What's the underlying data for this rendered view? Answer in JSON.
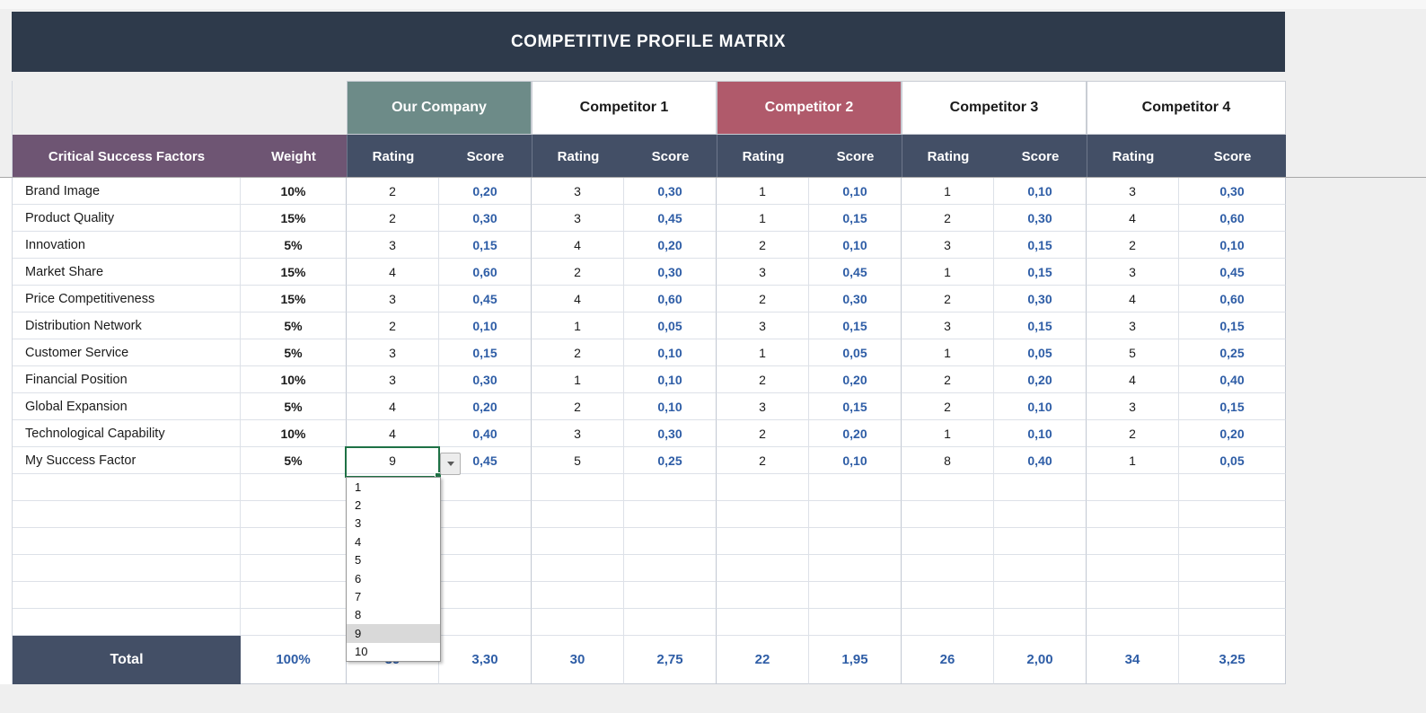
{
  "title": "COMPETITIVE PROFILE MATRIX",
  "header": {
    "factors": "Critical Success Factors",
    "weight": "Weight",
    "rating": "Rating",
    "score": "Score"
  },
  "companies": [
    {
      "name": "Our Company",
      "bg": "#6d8b88",
      "fg": "#ffffff"
    },
    {
      "name": "Competitor 1",
      "bg": "#ffffff",
      "fg": "#1a1a1a"
    },
    {
      "name": "Competitor 2",
      "bg": "#b05a6b",
      "fg": "#ffffff"
    },
    {
      "name": "Competitor 3",
      "bg": "#ffffff",
      "fg": "#1a1a1a"
    },
    {
      "name": "Competitor 4",
      "bg": "#ffffff",
      "fg": "#1a1a1a"
    }
  ],
  "rows": [
    {
      "factor": "Brand Image",
      "weight": "10%",
      "values": [
        "2",
        "0,20",
        "3",
        "0,30",
        "1",
        "0,10",
        "1",
        "0,10",
        "3",
        "0,30"
      ]
    },
    {
      "factor": "Product Quality",
      "weight": "15%",
      "values": [
        "2",
        "0,30",
        "3",
        "0,45",
        "1",
        "0,15",
        "2",
        "0,30",
        "4",
        "0,60"
      ]
    },
    {
      "factor": "Innovation",
      "weight": "5%",
      "values": [
        "3",
        "0,15",
        "4",
        "0,20",
        "2",
        "0,10",
        "3",
        "0,15",
        "2",
        "0,10"
      ]
    },
    {
      "factor": "Market Share",
      "weight": "15%",
      "values": [
        "4",
        "0,60",
        "2",
        "0,30",
        "3",
        "0,45",
        "1",
        "0,15",
        "3",
        "0,45"
      ]
    },
    {
      "factor": "Price Competitiveness",
      "weight": "15%",
      "values": [
        "3",
        "0,45",
        "4",
        "0,60",
        "2",
        "0,30",
        "2",
        "0,30",
        "4",
        "0,60"
      ]
    },
    {
      "factor": "Distribution Network",
      "weight": "5%",
      "values": [
        "2",
        "0,10",
        "1",
        "0,05",
        "3",
        "0,15",
        "3",
        "0,15",
        "3",
        "0,15"
      ]
    },
    {
      "factor": "Customer Service",
      "weight": "5%",
      "values": [
        "3",
        "0,15",
        "2",
        "0,10",
        "1",
        "0,05",
        "1",
        "0,05",
        "5",
        "0,25"
      ]
    },
    {
      "factor": "Financial Position",
      "weight": "10%",
      "values": [
        "3",
        "0,30",
        "1",
        "0,10",
        "2",
        "0,20",
        "2",
        "0,20",
        "4",
        "0,40"
      ]
    },
    {
      "factor": "Global Expansion",
      "weight": "5%",
      "values": [
        "4",
        "0,20",
        "2",
        "0,10",
        "3",
        "0,15",
        "2",
        "0,10",
        "3",
        "0,15"
      ]
    },
    {
      "factor": "Technological Capability",
      "weight": "10%",
      "values": [
        "4",
        "0,40",
        "3",
        "0,30",
        "2",
        "0,20",
        "1",
        "0,10",
        "2",
        "0,20"
      ]
    },
    {
      "factor": "My Success Factor",
      "weight": "5%",
      "values": [
        "9",
        "0,45",
        "5",
        "0,25",
        "2",
        "0,10",
        "8",
        "0,40",
        "1",
        "0,05"
      ]
    }
  ],
  "empty_row_count": 6,
  "selected": {
    "row_index": 10,
    "column": "Our Company Rating",
    "value": "9",
    "dropdown_options": [
      "1",
      "2",
      "3",
      "4",
      "5",
      "6",
      "7",
      "8",
      "9",
      "10"
    ],
    "selected_option": "9"
  },
  "total": {
    "label": "Total",
    "weight": "100%",
    "values": [
      "39",
      "3,30",
      "30",
      "2,75",
      "22",
      "1,95",
      "26",
      "2,00",
      "34",
      "3,25"
    ]
  },
  "colors": {
    "banner_bg": "#2e3a4b",
    "header_bg": "#434f66",
    "factors_header_bg": "#6e5573",
    "our_company_bg": "#6d8b88",
    "competitor2_bg": "#b05a6b",
    "score_text": "#2e5da6",
    "selection_border": "#1e7145",
    "page_bg": "#efefef"
  }
}
